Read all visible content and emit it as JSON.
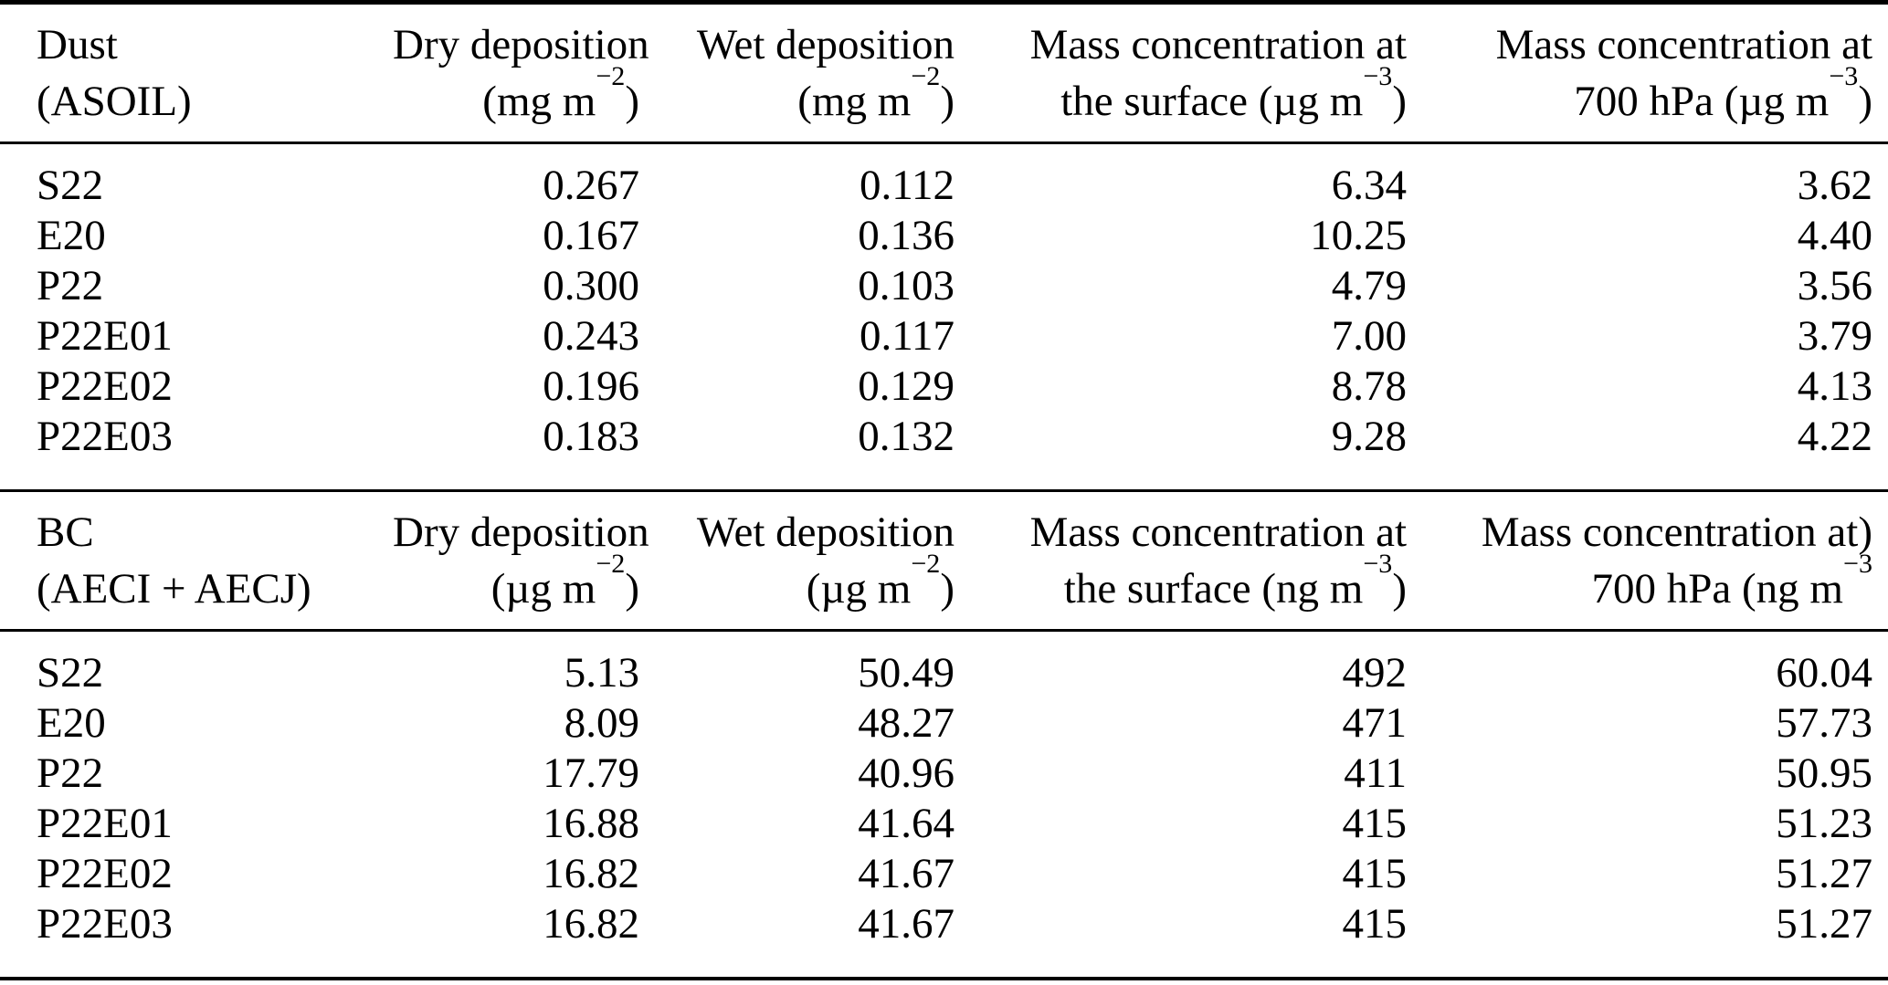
{
  "page": {
    "background_color": "#ffffff",
    "text_color": "#000000",
    "rule_color": "#000000"
  },
  "table": {
    "sections": [
      {
        "label_line1": "Dust",
        "label_line2": "(ASOIL)",
        "columns": [
          {
            "line1": "Dry deposition",
            "unit_prefix": "(mg m",
            "sup": "−2",
            "unit_suffix": ")"
          },
          {
            "line1": "Wet deposition",
            "unit_prefix": "(mg m",
            "sup": "−2",
            "unit_suffix": ")"
          },
          {
            "line1": "Mass concentration at",
            "unit_prefix": "the surface (µg m",
            "sup": "−3",
            "unit_suffix": ")"
          },
          {
            "line1": "Mass concentration at",
            "unit_prefix": "700 hPa (µg m",
            "sup": "−3",
            "unit_suffix": ")"
          }
        ],
        "rows": [
          {
            "label": "S22",
            "values": [
              "0.267",
              "0.112",
              "6.34",
              "3.62"
            ]
          },
          {
            "label": "E20",
            "values": [
              "0.167",
              "0.136",
              "10.25",
              "4.40"
            ]
          },
          {
            "label": "P22",
            "values": [
              "0.300",
              "0.103",
              "4.79",
              "3.56"
            ]
          },
          {
            "label": "P22E01",
            "values": [
              "0.243",
              "0.117",
              "7.00",
              "3.79"
            ]
          },
          {
            "label": "P22E02",
            "values": [
              "0.196",
              "0.129",
              "8.78",
              "4.13"
            ]
          },
          {
            "label": "P22E03",
            "values": [
              "0.183",
              "0.132",
              "9.28",
              "4.22"
            ]
          }
        ]
      },
      {
        "label_line1": "BC",
        "label_line2": "(AECI + AECJ)",
        "columns": [
          {
            "line1": "Dry deposition",
            "unit_prefix": "(µg m",
            "sup": "−2",
            "unit_suffix": ")"
          },
          {
            "line1": "Wet deposition",
            "unit_prefix": "(µg m",
            "sup": "−2",
            "unit_suffix": ")"
          },
          {
            "line1": "Mass concentration at",
            "unit_prefix": "the surface (ng m",
            "sup": "−3",
            "unit_suffix": ")"
          },
          {
            "line1": "Mass concentration at)",
            "unit_prefix": "700 hPa (ng m",
            "sup": "−3",
            "unit_suffix": ""
          }
        ],
        "rows": [
          {
            "label": "S22",
            "values": [
              "5.13",
              "50.49",
              "492",
              "60.04"
            ]
          },
          {
            "label": "E20",
            "values": [
              "8.09",
              "48.27",
              "471",
              "57.73"
            ]
          },
          {
            "label": "P22",
            "values": [
              "17.79",
              "40.96",
              "411",
              "50.95"
            ]
          },
          {
            "label": "P22E01",
            "values": [
              "16.88",
              "41.64",
              "415",
              "51.23"
            ]
          },
          {
            "label": "P22E02",
            "values": [
              "16.82",
              "41.67",
              "415",
              "51.27"
            ]
          },
          {
            "label": "P22E03",
            "values": [
              "16.82",
              "41.67",
              "415",
              "51.27"
            ]
          }
        ]
      }
    ]
  }
}
